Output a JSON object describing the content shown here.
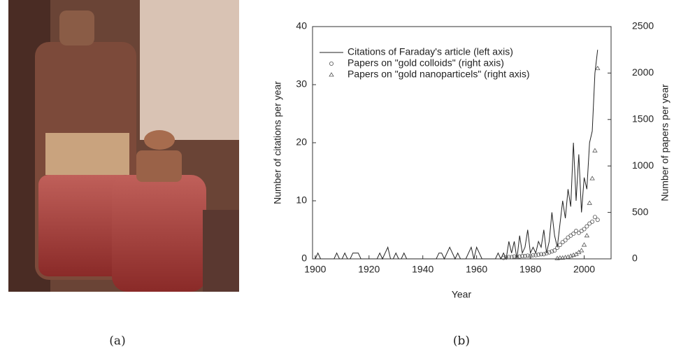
{
  "captions": [
    "(a)",
    "(b)"
  ],
  "chart_data": {
    "type": "line",
    "xlabel": "Year",
    "ylabel": "Number of citations per year",
    "y2label": "Number of papers per year",
    "xlim": [
      1899,
      2010
    ],
    "xticks": [
      1900,
      1920,
      1940,
      1960,
      1980,
      2000
    ],
    "ylim": [
      0,
      40
    ],
    "yticks": [
      0,
      10,
      20,
      30,
      40
    ],
    "y2lim": [
      0,
      2500
    ],
    "y2ticks": [
      0,
      500,
      1000,
      1500,
      2000,
      2500
    ],
    "legend": "upper left",
    "series": [
      {
        "name": "Citations of Faraday's article (left axis)",
        "style": "line",
        "color": "#222",
        "axis": "y",
        "x": [
          1900,
          1901,
          1902,
          1903,
          1904,
          1905,
          1906,
          1907,
          1908,
          1909,
          1910,
          1911,
          1912,
          1913,
          1914,
          1915,
          1916,
          1917,
          1918,
          1919,
          1920,
          1921,
          1922,
          1923,
          1924,
          1925,
          1926,
          1927,
          1928,
          1929,
          1930,
          1931,
          1932,
          1933,
          1934,
          1935,
          1936,
          1937,
          1938,
          1939,
          1940,
          1941,
          1942,
          1943,
          1944,
          1945,
          1946,
          1947,
          1948,
          1949,
          1950,
          1951,
          1952,
          1953,
          1954,
          1955,
          1956,
          1957,
          1958,
          1959,
          1960,
          1961,
          1962,
          1963,
          1964,
          1965,
          1966,
          1967,
          1968,
          1969,
          1970,
          1971,
          1972,
          1973,
          1974,
          1975,
          1976,
          1977,
          1978,
          1979,
          1980,
          1981,
          1982,
          1983,
          1984,
          1985,
          1986,
          1987,
          1988,
          1989,
          1990,
          1991,
          1992,
          1993,
          1994,
          1995,
          1996,
          1997,
          1998,
          1999,
          2000,
          2001,
          2002,
          2003,
          2004,
          2005
        ],
        "values": [
          0,
          1,
          0,
          0,
          0,
          0,
          0,
          0,
          1,
          0,
          0,
          1,
          0,
          0,
          1,
          1,
          1,
          0,
          0,
          0,
          0,
          0,
          0,
          0,
          1,
          0,
          1,
          2,
          0,
          0,
          1,
          0,
          0,
          1,
          0,
          0,
          0,
          0,
          0,
          0,
          0,
          0,
          0,
          0,
          0,
          0,
          1,
          1,
          0,
          1,
          2,
          1,
          0,
          1,
          0,
          0,
          0,
          1,
          2,
          0,
          2,
          1,
          0,
          0,
          0,
          0,
          0,
          0,
          1,
          0,
          1,
          0,
          3,
          1,
          3,
          0,
          4,
          1,
          2,
          5,
          1,
          2,
          1,
          3,
          2,
          5,
          1,
          3,
          8,
          4,
          2,
          6,
          10,
          7,
          12,
          9,
          20,
          10,
          18,
          8,
          14,
          12,
          20,
          22,
          32,
          36
        ]
      },
      {
        "name": "Papers on \"gold colloids\" (right axis)",
        "style": "circle",
        "color": "#555",
        "axis": "y2",
        "x": [
          1970,
          1971,
          1972,
          1973,
          1974,
          1975,
          1976,
          1977,
          1978,
          1979,
          1980,
          1981,
          1982,
          1983,
          1984,
          1985,
          1986,
          1987,
          1988,
          1989,
          1990,
          1991,
          1992,
          1993,
          1994,
          1995,
          1996,
          1997,
          1998,
          1999,
          2000,
          2001,
          2002,
          2003,
          2004,
          2005
        ],
        "values": [
          10,
          15,
          20,
          20,
          25,
          20,
          25,
          30,
          30,
          35,
          30,
          40,
          40,
          45,
          50,
          50,
          60,
          70,
          80,
          90,
          120,
          150,
          180,
          200,
          230,
          250,
          270,
          300,
          280,
          300,
          320,
          350,
          380,
          400,
          450,
          420
        ]
      },
      {
        "name": "Papers on \"gold nanoparticels\" (right axis)",
        "style": "triangle",
        "color": "#555",
        "axis": "y2",
        "x": [
          1990,
          1991,
          1992,
          1993,
          1994,
          1995,
          1996,
          1997,
          1998,
          1999,
          2000,
          2001,
          2002,
          2003,
          2004,
          2005
        ],
        "values": [
          5,
          10,
          10,
          15,
          20,
          30,
          40,
          50,
          70,
          90,
          150,
          250,
          600,
          865,
          1165,
          2050
        ]
      }
    ]
  }
}
